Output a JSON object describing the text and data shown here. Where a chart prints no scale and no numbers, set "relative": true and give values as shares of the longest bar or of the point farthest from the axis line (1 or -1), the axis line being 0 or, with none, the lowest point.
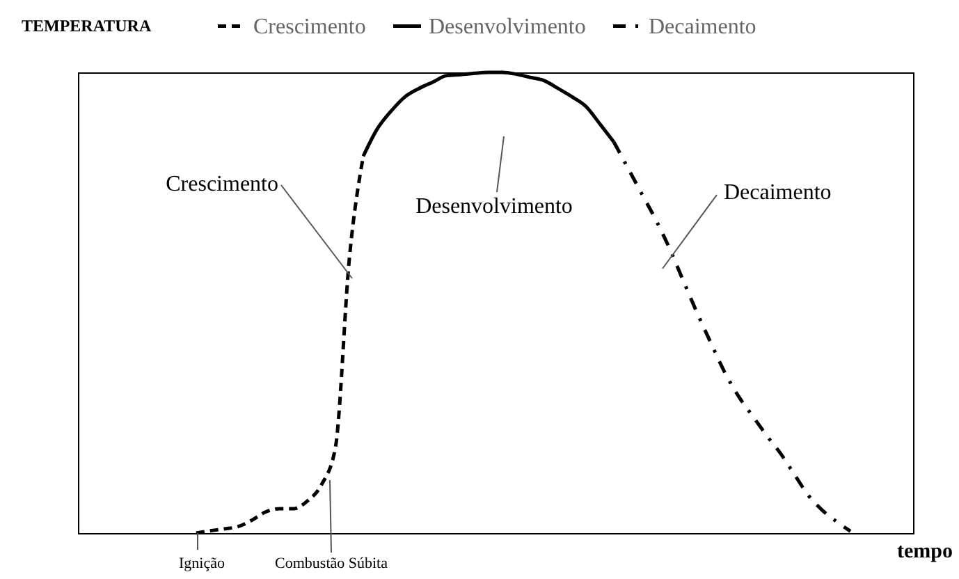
{
  "chart_data": {
    "type": "line",
    "relative": true,
    "ylabel": "TEMPERATURA",
    "xlabel": "tempo",
    "legend": "top",
    "grid": false,
    "marker": "none",
    "categories": [
      null,
      null,
      null,
      null,
      null,
      null,
      null,
      null,
      null,
      null,
      null,
      null,
      null,
      null,
      null,
      null,
      null,
      null,
      null,
      null,
      null,
      null,
      null,
      null,
      null,
      null,
      null,
      null,
      null,
      null,
      null,
      null,
      null,
      null,
      null,
      null,
      null,
      null,
      null,
      null,
      null,
      null,
      null,
      null,
      null,
      null,
      null,
      null,
      null,
      null,
      null,
      null,
      null,
      null,
      null,
      null,
      null,
      null,
      null,
      null
    ],
    "series": [
      {
        "name": "Crescimento",
        "color": "#000000",
        "line_style": "dashed",
        "values": [
          null,
          null,
          null,
          null,
          null,
          null,
          null,
          null,
          0,
          0.005,
          0.009,
          0.014,
          0.028,
          0.046,
          0.053,
          0.053,
          0.07,
          0.105,
          0.186,
          0.596,
          0.818,
          null,
          null,
          null,
          null,
          null,
          null,
          null,
          null,
          null,
          null,
          null,
          null,
          null,
          null,
          null,
          null,
          null,
          null,
          null,
          null,
          null,
          null,
          null,
          null,
          null,
          null,
          null,
          null,
          null,
          null,
          null,
          null,
          null,
          null,
          null,
          null,
          null,
          null,
          null
        ]
      },
      {
        "name": "Desenvolvimento",
        "color": "#000000",
        "line_style": "solid",
        "values": [
          null,
          null,
          null,
          null,
          null,
          null,
          null,
          null,
          null,
          null,
          null,
          null,
          null,
          null,
          null,
          null,
          null,
          null,
          null,
          null,
          0.818,
          0.877,
          0.916,
          0.947,
          0.965,
          0.979,
          0.993,
          0.995,
          0.998,
          1,
          1,
          0.996,
          0.989,
          0.982,
          0.965,
          0.947,
          0.926,
          0.888,
          0.849,
          null,
          null,
          null,
          null,
          null,
          null,
          null,
          null,
          null,
          null,
          null,
          null,
          null,
          null,
          null,
          null,
          null,
          null,
          null,
          null,
          null
        ]
      },
      {
        "name": "Decaimento",
        "color": "#000000",
        "line_style": "dashdot",
        "values": [
          null,
          null,
          null,
          null,
          null,
          null,
          null,
          null,
          null,
          null,
          null,
          null,
          null,
          null,
          null,
          null,
          null,
          null,
          null,
          null,
          null,
          null,
          null,
          null,
          null,
          null,
          null,
          null,
          null,
          null,
          null,
          null,
          null,
          null,
          null,
          null,
          null,
          null,
          0.849,
          0.793,
          0.737,
          0.681,
          0.618,
          0.547,
          0.477,
          0.411,
          0.347,
          0.295,
          0.253,
          0.211,
          0.172,
          0.126,
          0.081,
          0.049,
          0.025,
          0.004,
          null,
          null,
          null,
          null
        ]
      }
    ],
    "annotations": [
      "Crescimento",
      "Desenvolvimento",
      "Decaimento",
      "Ignição",
      "Combustão Súbita"
    ]
  }
}
